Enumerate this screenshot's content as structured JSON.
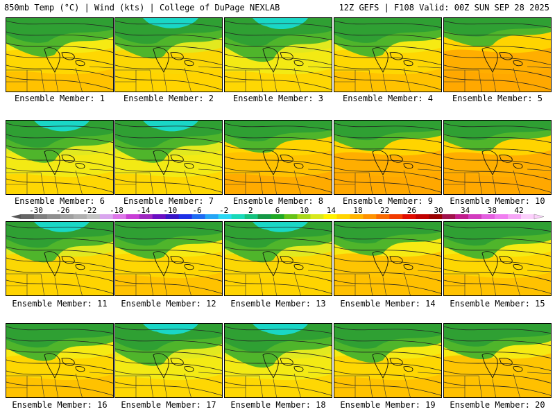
{
  "header": {
    "left": "850mb Temp (°C) | Wind (kts) | College of DuPage NEXLAB",
    "right": "12Z GEFS | F108 Valid: 00Z SUN SEP 28 2025"
  },
  "label_prefix": "Ensemble Member: ",
  "members": [
    {
      "id": "1",
      "warmth": 0.5
    },
    {
      "id": "2",
      "warmth": 0.45
    },
    {
      "id": "3",
      "warmth": 0.35
    },
    {
      "id": "4",
      "warmth": 0.5
    },
    {
      "id": "5",
      "warmth": 0.8
    },
    {
      "id": "6",
      "warmth": 0.4
    },
    {
      "id": "7",
      "warmth": 0.4
    },
    {
      "id": "8",
      "warmth": 0.7
    },
    {
      "id": "9",
      "warmth": 0.75
    },
    {
      "id": "10",
      "warmth": 0.75
    },
    {
      "id": "11",
      "warmth": 0.45
    },
    {
      "id": "12",
      "warmth": 0.55
    },
    {
      "id": "13",
      "warmth": 0.45
    },
    {
      "id": "14",
      "warmth": 0.65
    },
    {
      "id": "15",
      "warmth": 0.55
    },
    {
      "id": "16",
      "warmth": 0.55
    },
    {
      "id": "17",
      "warmth": 0.4
    },
    {
      "id": "18",
      "warmth": 0.35
    },
    {
      "id": "19",
      "warmth": 0.5
    },
    {
      "id": "20",
      "warmth": 0.6
    }
  ],
  "colorbar": {
    "ticks": [
      "-30",
      "-26",
      "-22",
      "-18",
      "-14",
      "-10",
      "-6",
      "-2",
      "2",
      "6",
      "10",
      "14",
      "18",
      "22",
      "26",
      "30",
      "34",
      "38",
      "42"
    ],
    "colors": [
      "#666666",
      "#7f7f7f",
      "#8f8f8f",
      "#a0a0a0",
      "#b0b0b0",
      "#c3c3c3",
      "#d9a6ee",
      "#dd77e8",
      "#c83ed6",
      "#9e28c0",
      "#6a0fc2",
      "#3816c6",
      "#1e30e6",
      "#1f6cf2",
      "#26a6f6",
      "#2ad7f2",
      "#19d9b9",
      "#15c27f",
      "#159846",
      "#20a825",
      "#67c318",
      "#a8d81c",
      "#d8e81e",
      "#fff200",
      "#ffd400",
      "#ffb400",
      "#ff9200",
      "#f96a00",
      "#f13a00",
      "#e00c00",
      "#c00000",
      "#9a0000",
      "#a1124c",
      "#c01c8c",
      "#d23cbe",
      "#e460e0",
      "#f07ff0",
      "#f6a6f6",
      "#fbd0fb"
    ]
  }
}
